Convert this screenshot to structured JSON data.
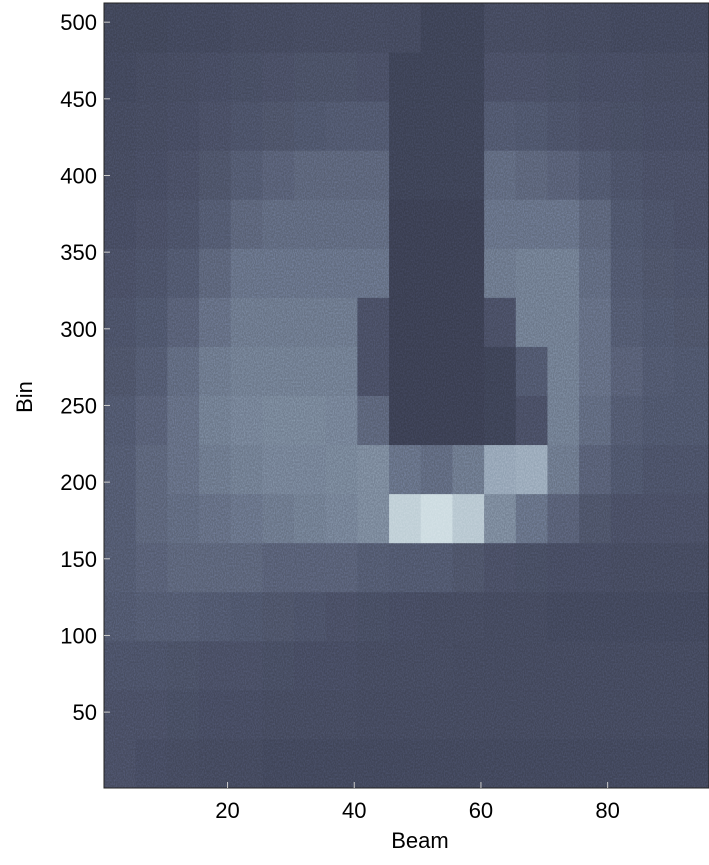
{
  "chart_data": {
    "type": "heatmap",
    "xlabel": "Beam",
    "ylabel": "Bin",
    "xlim": [
      0.5,
      96
    ],
    "ylim": [
      0.5,
      512.5
    ],
    "xticks": [
      20,
      40,
      60,
      80
    ],
    "yticks": [
      50,
      100,
      150,
      200,
      250,
      300,
      350,
      400,
      450,
      500
    ],
    "xbins": [
      0.5,
      5.5,
      10.5,
      15.5,
      20.5,
      25.5,
      30.5,
      35.5,
      40.5,
      45.5,
      50.5,
      55.5,
      60.5,
      65.5,
      70.5,
      75.5,
      80.5,
      85.5,
      90.5,
      96
    ],
    "ybins": [
      0.5,
      32.5,
      64.5,
      96.5,
      128.5,
      160.5,
      192.5,
      224.5,
      256.5,
      288.5,
      320.5,
      352.5,
      384.5,
      416.5,
      448.5,
      480.5,
      512.5
    ],
    "zlim": [
      0,
      1
    ],
    "colormap": [
      "#1f2130",
      "#4a5064",
      "#8e9fb0",
      "#e6f4f4"
    ],
    "z": [
      [
        0.3,
        0.28,
        0.27,
        0.26,
        0.26,
        0.25,
        0.25,
        0.25,
        0.25,
        0.25,
        0.25,
        0.25,
        0.25,
        0.25,
        0.25,
        0.25,
        0.25,
        0.25,
        0.25
      ],
      [
        0.3,
        0.3,
        0.29,
        0.28,
        0.28,
        0.27,
        0.27,
        0.27,
        0.26,
        0.26,
        0.26,
        0.26,
        0.26,
        0.26,
        0.26,
        0.26,
        0.26,
        0.26,
        0.26
      ],
      [
        0.32,
        0.32,
        0.31,
        0.3,
        0.3,
        0.29,
        0.28,
        0.28,
        0.27,
        0.27,
        0.27,
        0.26,
        0.26,
        0.26,
        0.26,
        0.26,
        0.26,
        0.26,
        0.26
      ],
      [
        0.35,
        0.36,
        0.36,
        0.35,
        0.34,
        0.33,
        0.32,
        0.3,
        0.29,
        0.28,
        0.27,
        0.27,
        0.26,
        0.26,
        0.25,
        0.25,
        0.25,
        0.25,
        0.25
      ],
      [
        0.36,
        0.38,
        0.4,
        0.4,
        0.4,
        0.38,
        0.38,
        0.38,
        0.36,
        0.35,
        0.35,
        0.33,
        0.3,
        0.29,
        0.28,
        0.28,
        0.27,
        0.27,
        0.27
      ],
      [
        0.36,
        0.4,
        0.42,
        0.44,
        0.46,
        0.48,
        0.5,
        0.52,
        0.55,
        0.85,
        0.9,
        0.82,
        0.55,
        0.45,
        0.38,
        0.33,
        0.3,
        0.3,
        0.3
      ],
      [
        0.36,
        0.4,
        0.44,
        0.48,
        0.5,
        0.52,
        0.52,
        0.53,
        0.55,
        0.45,
        0.42,
        0.48,
        0.68,
        0.7,
        0.48,
        0.38,
        0.34,
        0.32,
        0.32
      ],
      [
        0.35,
        0.38,
        0.44,
        0.5,
        0.52,
        0.53,
        0.53,
        0.52,
        0.4,
        0.2,
        0.2,
        0.2,
        0.22,
        0.3,
        0.5,
        0.42,
        0.36,
        0.34,
        0.34
      ],
      [
        0.33,
        0.36,
        0.42,
        0.48,
        0.5,
        0.5,
        0.5,
        0.5,
        0.3,
        0.2,
        0.2,
        0.2,
        0.22,
        0.35,
        0.5,
        0.44,
        0.38,
        0.35,
        0.34
      ],
      [
        0.32,
        0.34,
        0.38,
        0.44,
        0.48,
        0.48,
        0.48,
        0.48,
        0.3,
        0.2,
        0.2,
        0.2,
        0.3,
        0.5,
        0.5,
        0.44,
        0.36,
        0.34,
        0.33
      ],
      [
        0.3,
        0.32,
        0.35,
        0.4,
        0.45,
        0.45,
        0.45,
        0.45,
        0.45,
        0.2,
        0.2,
        0.2,
        0.48,
        0.5,
        0.5,
        0.42,
        0.35,
        0.33,
        0.32
      ],
      [
        0.28,
        0.3,
        0.32,
        0.36,
        0.4,
        0.42,
        0.42,
        0.42,
        0.42,
        0.2,
        0.2,
        0.2,
        0.45,
        0.45,
        0.45,
        0.4,
        0.34,
        0.32,
        0.3
      ],
      [
        0.27,
        0.28,
        0.3,
        0.33,
        0.36,
        0.38,
        0.4,
        0.4,
        0.4,
        0.22,
        0.22,
        0.22,
        0.42,
        0.4,
        0.38,
        0.35,
        0.32,
        0.3,
        0.3
      ],
      [
        0.26,
        0.27,
        0.28,
        0.3,
        0.32,
        0.33,
        0.34,
        0.35,
        0.35,
        0.22,
        0.22,
        0.22,
        0.35,
        0.34,
        0.32,
        0.3,
        0.29,
        0.28,
        0.28
      ],
      [
        0.25,
        0.26,
        0.27,
        0.28,
        0.29,
        0.3,
        0.31,
        0.31,
        0.3,
        0.22,
        0.22,
        0.22,
        0.3,
        0.3,
        0.29,
        0.28,
        0.28,
        0.27,
        0.27
      ],
      [
        0.24,
        0.24,
        0.25,
        0.25,
        0.26,
        0.26,
        0.27,
        0.27,
        0.27,
        0.26,
        0.22,
        0.22,
        0.27,
        0.27,
        0.26,
        0.26,
        0.25,
        0.25,
        0.25
      ]
    ]
  }
}
